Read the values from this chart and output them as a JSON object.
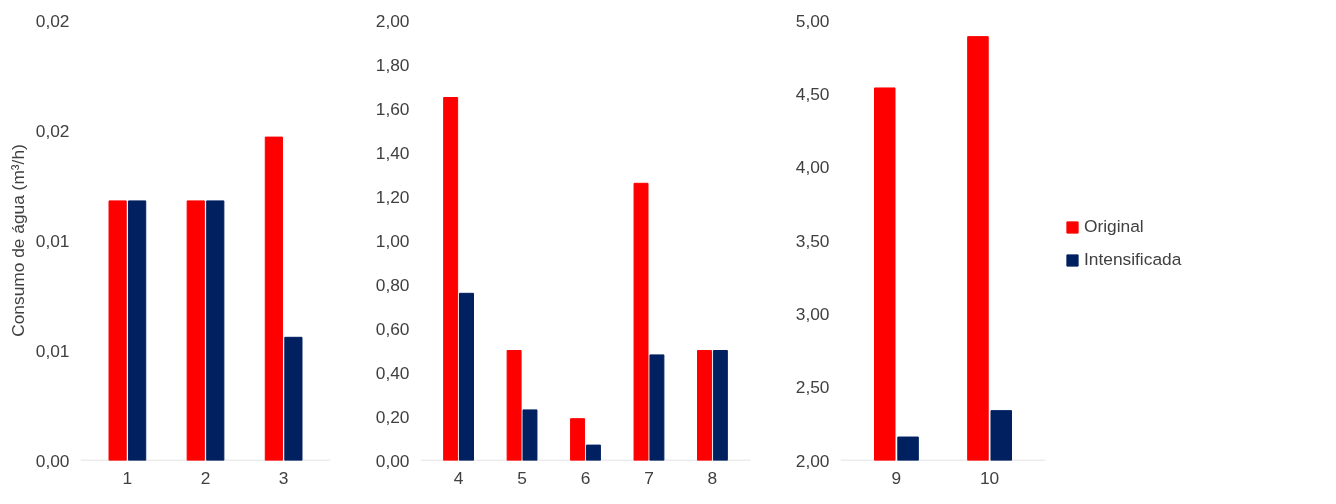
{
  "chart_data": [
    {
      "type": "bar",
      "ylabel": "Consumo de água (m³/h)",
      "categories": [
        "1",
        "2",
        "3"
      ],
      "series": [
        {
          "color": "#ff0000",
          "values": [
            0.0118,
            0.0118,
            0.0147
          ]
        },
        {
          "color": "#002060",
          "values": [
            0.0118,
            0.0118,
            0.0056
          ]
        }
      ],
      "ylim": [
        0,
        0.02
      ],
      "yticks": [
        {
          "value": 0,
          "label": "0,00"
        },
        {
          "value": 0.005,
          "label": "0,01"
        },
        {
          "value": 0.01,
          "label": "0,01"
        },
        {
          "value": 0.015,
          "label": "0,02"
        },
        {
          "value": 0.02,
          "label": "0,02"
        }
      ],
      "grid": false,
      "legend": false
    },
    {
      "type": "bar",
      "categories": [
        "4",
        "5",
        "6",
        "7",
        "8"
      ],
      "series": [
        {
          "color": "#ff0000",
          "values": [
            1.65,
            0.5,
            0.19,
            1.26,
            0.5
          ]
        },
        {
          "color": "#002060",
          "values": [
            0.76,
            0.23,
            0.07,
            0.48,
            0.5
          ]
        }
      ],
      "ylim": [
        0,
        2
      ],
      "yticks": [
        {
          "value": 0,
          "label": "0,00"
        },
        {
          "value": 0.2,
          "label": "0,20"
        },
        {
          "value": 0.4,
          "label": "0,40"
        },
        {
          "value": 0.6,
          "label": "0,60"
        },
        {
          "value": 0.8,
          "label": "0,80"
        },
        {
          "value": 1.0,
          "label": "1,00"
        },
        {
          "value": 1.2,
          "label": "1,20"
        },
        {
          "value": 1.4,
          "label": "1,40"
        },
        {
          "value": 1.6,
          "label": "1,60"
        },
        {
          "value": 1.8,
          "label": "1,80"
        },
        {
          "value": 2.0,
          "label": "2,00"
        }
      ],
      "grid": false,
      "legend": false
    },
    {
      "type": "bar",
      "categories": [
        "9",
        "10"
      ],
      "series": [
        {
          "name": "Original",
          "color": "#ff0000",
          "values": [
            4.54,
            4.89
          ]
        },
        {
          "name": "Intensificada",
          "color": "#002060",
          "values": [
            2.16,
            2.34
          ]
        }
      ],
      "ylim": [
        2,
        5
      ],
      "yticks": [
        {
          "value": 2,
          "label": "2,00"
        },
        {
          "value": 2.5,
          "label": "2,50"
        },
        {
          "value": 3,
          "label": "3,00"
        },
        {
          "value": 3.5,
          "label": "3,50"
        },
        {
          "value": 4,
          "label": "4,00"
        },
        {
          "value": 4.5,
          "label": "4,50"
        },
        {
          "value": 5,
          "label": "5,00"
        }
      ],
      "grid": false,
      "legend": "right"
    }
  ]
}
